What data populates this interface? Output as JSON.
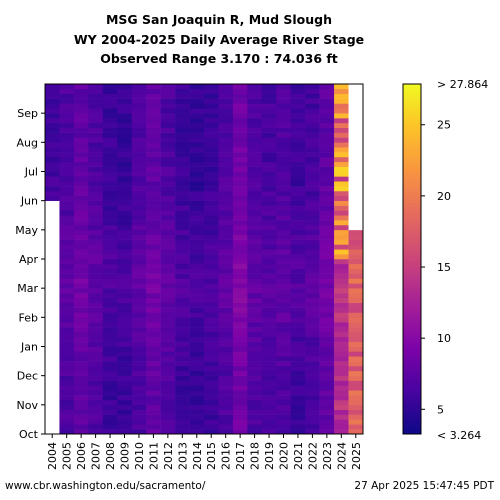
{
  "chart_data": {
    "type": "heatmap",
    "title_lines": [
      "MSG San Joaquin R, Mud Slough",
      "WY 2004-2025 Daily Average River Stage",
      "Observed Range 3.170 : 74.036 ft"
    ],
    "x_categories": [
      "2004",
      "2005",
      "2006",
      "2007",
      "2008",
      "2009",
      "2010",
      "2011",
      "2012",
      "2013",
      "2014",
      "2015",
      "2016",
      "2017",
      "2018",
      "2019",
      "2020",
      "2021",
      "2022",
      "2023",
      "2024",
      "2025"
    ],
    "y_categories": [
      "Oct",
      "Nov",
      "Dec",
      "Jan",
      "Feb",
      "Mar",
      "Apr",
      "May",
      "Jun",
      "Jul",
      "Aug",
      "Sep"
    ],
    "colorbar": {
      "min": 3.264,
      "max": 27.864,
      "ticks": [
        5,
        10,
        15,
        20,
        25
      ],
      "min_label": "< 3.264",
      "max_label": "> 27.864",
      "colormap": "plasma"
    },
    "yearly_base_values": [
      6.0,
      6.6,
      7.6,
      6.6,
      5.6,
      5.4,
      6.6,
      7.6,
      6.6,
      5.6,
      5.2,
      5.6,
      6.6,
      8.6,
      6.6,
      6.2,
      6.6,
      5.8,
      6.2,
      7.6,
      15.0,
      15.5
    ],
    "missing_data_color": "#ffffff",
    "notes_visible": {
      "2004_data_starts": "Jun",
      "2025_data_ends": "Apr 27"
    }
  },
  "footer": {
    "source": "www.cbr.washington.edu/sacramento/",
    "timestamp": "27 Apr 2025 15:47:45 PDT"
  }
}
